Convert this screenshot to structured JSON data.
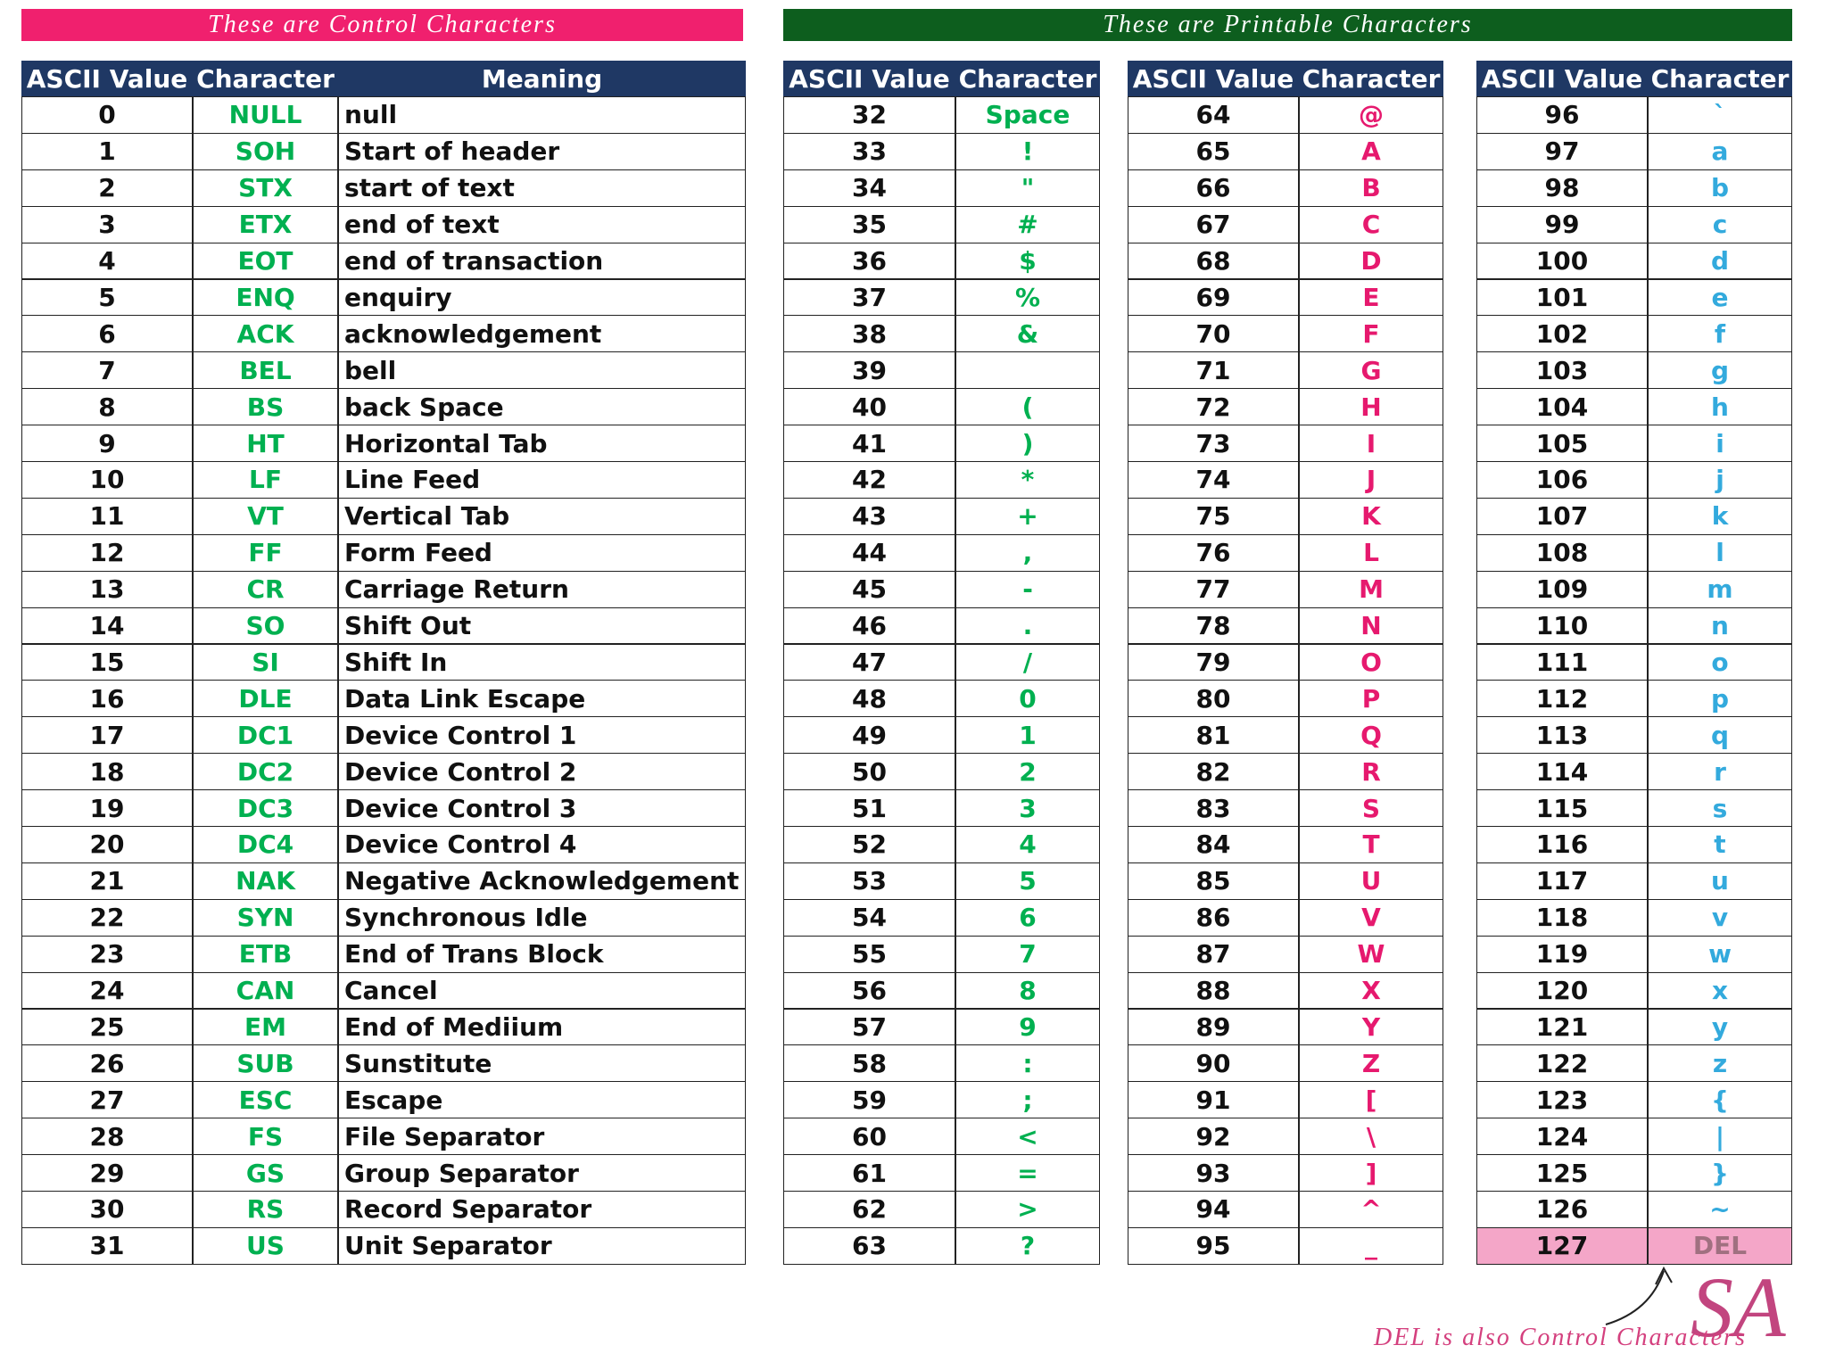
{
  "banners": {
    "control": "These are Control Characters",
    "control_color": "#f0206e",
    "printable": "These are Printable Characters",
    "printable_color": "#0d5e1e"
  },
  "control_table": {
    "char_color": "#00b050",
    "headers": [
      "ASCII Value",
      "Character",
      "Meaning"
    ],
    "rows": [
      [
        0,
        "NULL",
        "null"
      ],
      [
        1,
        "SOH",
        "Start of header"
      ],
      [
        2,
        "STX",
        "start of text"
      ],
      [
        3,
        "ETX",
        "end of text"
      ],
      [
        4,
        "EOT",
        "end of transaction"
      ],
      [
        5,
        "ENQ",
        "enquiry"
      ],
      [
        6,
        "ACK",
        "acknowledgement"
      ],
      [
        7,
        "BEL",
        "bell"
      ],
      [
        8,
        "BS",
        "back Space"
      ],
      [
        9,
        "HT",
        "Horizontal Tab"
      ],
      [
        10,
        "LF",
        "Line Feed"
      ],
      [
        11,
        "VT",
        "Vertical Tab"
      ],
      [
        12,
        "FF",
        "Form Feed"
      ],
      [
        13,
        "CR",
        "Carriage Return"
      ],
      [
        14,
        "SO",
        "Shift Out"
      ],
      [
        15,
        "SI",
        "Shift In"
      ],
      [
        16,
        "DLE",
        "Data Link Escape"
      ],
      [
        17,
        "DC1",
        "Device Control 1"
      ],
      [
        18,
        "DC2",
        "Device Control 2"
      ],
      [
        19,
        "DC3",
        "Device Control 3"
      ],
      [
        20,
        "DC4",
        "Device Control 4"
      ],
      [
        21,
        "NAK",
        "Negative Acknowledgement"
      ],
      [
        22,
        "SYN",
        "Synchronous Idle"
      ],
      [
        23,
        "ETB",
        "End of Trans Block"
      ],
      [
        24,
        "CAN",
        "Cancel"
      ],
      [
        25,
        "EM",
        "End of Mediium"
      ],
      [
        26,
        "SUB",
        "Sunstitute"
      ],
      [
        27,
        "ESC",
        "Escape"
      ],
      [
        28,
        "FS",
        "File Separator"
      ],
      [
        29,
        "GS",
        "Group Separator"
      ],
      [
        30,
        "RS",
        "Record Separator"
      ],
      [
        31,
        "US",
        "Unit Separator"
      ]
    ]
  },
  "printable_tables": [
    {
      "char_color": "#00b050",
      "headers": [
        "ASCII Value",
        "Character"
      ],
      "rows": [
        [
          32,
          "Space"
        ],
        [
          33,
          "!"
        ],
        [
          34,
          "\""
        ],
        [
          35,
          "#"
        ],
        [
          36,
          "$"
        ],
        [
          37,
          "%"
        ],
        [
          38,
          "&"
        ],
        [
          39,
          null
        ],
        [
          40,
          "("
        ],
        [
          41,
          ")"
        ],
        [
          42,
          "*"
        ],
        [
          43,
          "+"
        ],
        [
          44,
          ","
        ],
        [
          45,
          "-"
        ],
        [
          46,
          "."
        ],
        [
          47,
          "/"
        ],
        [
          48,
          "0"
        ],
        [
          49,
          "1"
        ],
        [
          50,
          "2"
        ],
        [
          51,
          "3"
        ],
        [
          52,
          "4"
        ],
        [
          53,
          "5"
        ],
        [
          54,
          "6"
        ],
        [
          55,
          "7"
        ],
        [
          56,
          "8"
        ],
        [
          57,
          "9"
        ],
        [
          58,
          ":"
        ],
        [
          59,
          ";"
        ],
        [
          60,
          "<"
        ],
        [
          61,
          "="
        ],
        [
          62,
          ">"
        ],
        [
          63,
          "?"
        ]
      ]
    },
    {
      "char_color": "#e6196e",
      "headers": [
        "ASCII Value",
        "Character"
      ],
      "rows": [
        [
          64,
          "@"
        ],
        [
          65,
          "A"
        ],
        [
          66,
          "B"
        ],
        [
          67,
          "C"
        ],
        [
          68,
          "D"
        ],
        [
          69,
          "E"
        ],
        [
          70,
          "F"
        ],
        [
          71,
          "G"
        ],
        [
          72,
          "H"
        ],
        [
          73,
          "I"
        ],
        [
          74,
          "J"
        ],
        [
          75,
          "K"
        ],
        [
          76,
          "L"
        ],
        [
          77,
          "M"
        ],
        [
          78,
          "N"
        ],
        [
          79,
          "O"
        ],
        [
          80,
          "P"
        ],
        [
          81,
          "Q"
        ],
        [
          82,
          "R"
        ],
        [
          83,
          "S"
        ],
        [
          84,
          "T"
        ],
        [
          85,
          "U"
        ],
        [
          86,
          "V"
        ],
        [
          87,
          "W"
        ],
        [
          88,
          "X"
        ],
        [
          89,
          "Y"
        ],
        [
          90,
          "Z"
        ],
        [
          91,
          "["
        ],
        [
          92,
          "\\"
        ],
        [
          93,
          "]"
        ],
        [
          94,
          "^"
        ],
        [
          95,
          "_"
        ]
      ]
    },
    {
      "char_color": "#33aadd",
      "headers": [
        "ASCII Value",
        "Character"
      ],
      "rows": [
        [
          96,
          "`"
        ],
        [
          97,
          "a"
        ],
        [
          98,
          "b"
        ],
        [
          99,
          "c"
        ],
        [
          100,
          "d"
        ],
        [
          101,
          "e"
        ],
        [
          102,
          "f"
        ],
        [
          103,
          "g"
        ],
        [
          104,
          "h"
        ],
        [
          105,
          "i"
        ],
        [
          106,
          "j"
        ],
        [
          107,
          "k"
        ],
        [
          108,
          "l"
        ],
        [
          109,
          "m"
        ],
        [
          110,
          "n"
        ],
        [
          111,
          "o"
        ],
        [
          112,
          "p"
        ],
        [
          113,
          "q"
        ],
        [
          114,
          "r"
        ],
        [
          115,
          "s"
        ],
        [
          116,
          "t"
        ],
        [
          117,
          "u"
        ],
        [
          118,
          "v"
        ],
        [
          119,
          "w"
        ],
        [
          120,
          "x"
        ],
        [
          121,
          "y"
        ],
        [
          122,
          "z"
        ],
        [
          123,
          "{"
        ],
        [
          124,
          "|"
        ],
        [
          125,
          "}"
        ],
        [
          126,
          "~"
        ],
        [
          127,
          "DEL"
        ]
      ]
    }
  ],
  "footnote": "DEL is also Control Characters",
  "logo": "SA"
}
